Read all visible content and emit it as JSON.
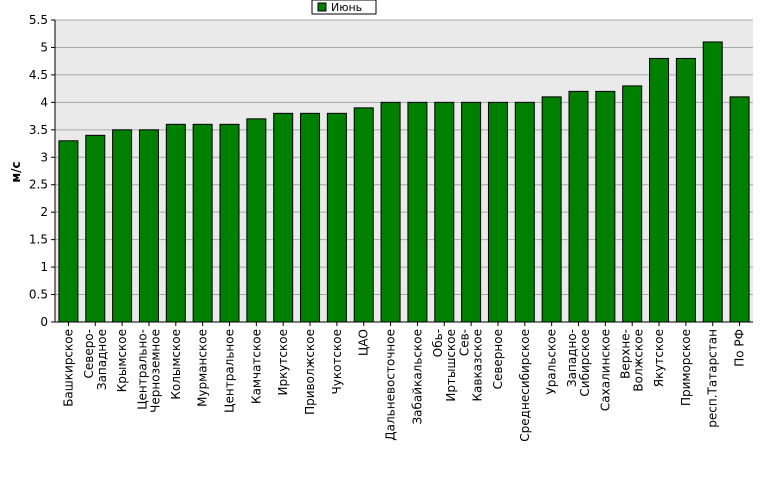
{
  "chart_data": {
    "type": "bar",
    "title": "",
    "xlabel": "",
    "ylabel": "м/с",
    "ylim": [
      0,
      5.5
    ],
    "yticks": [
      "0",
      "0.5",
      "1",
      "1.5",
      "2",
      "2.5",
      "3",
      "3.5",
      "4",
      "4.5",
      "5",
      "5.5"
    ],
    "grid": true,
    "legend": "top-center",
    "categories": [
      [
        "Башкирское"
      ],
      [
        "Северо-",
        "Западное"
      ],
      [
        "Крымское"
      ],
      [
        "Центрально-",
        "Черноземное"
      ],
      [
        "Колымское"
      ],
      [
        "Мурманское"
      ],
      [
        "Центральное"
      ],
      [
        "Камчатское"
      ],
      [
        "Иркутское"
      ],
      [
        "Приволжское"
      ],
      [
        "Чукотское"
      ],
      [
        "ЦАО"
      ],
      [
        "Дальневосточное"
      ],
      [
        "Забайкальское"
      ],
      [
        "Обь-",
        "Иртышское"
      ],
      [
        "Сев-",
        "Кавказское"
      ],
      [
        "Северное"
      ],
      [
        "Среднесибирское"
      ],
      [
        "Уральское"
      ],
      [
        "Западно-",
        "Сибирское"
      ],
      [
        "Сахалинское"
      ],
      [
        "Верхне-",
        "Волжское"
      ],
      [
        "Якутское"
      ],
      [
        "Приморское"
      ],
      [
        "респ.Татарстан"
      ],
      [
        "По РФ"
      ]
    ],
    "series": [
      {
        "name": "Июнь",
        "color": "#008000",
        "values": [
          3.3,
          3.4,
          3.5,
          3.5,
          3.6,
          3.6,
          3.6,
          3.7,
          3.8,
          3.8,
          3.8,
          3.9,
          4.0,
          4.0,
          4.0,
          4.0,
          4.0,
          4.0,
          4.1,
          4.2,
          4.2,
          4.3,
          4.8,
          4.8,
          5.1,
          4.1
        ]
      }
    ]
  }
}
